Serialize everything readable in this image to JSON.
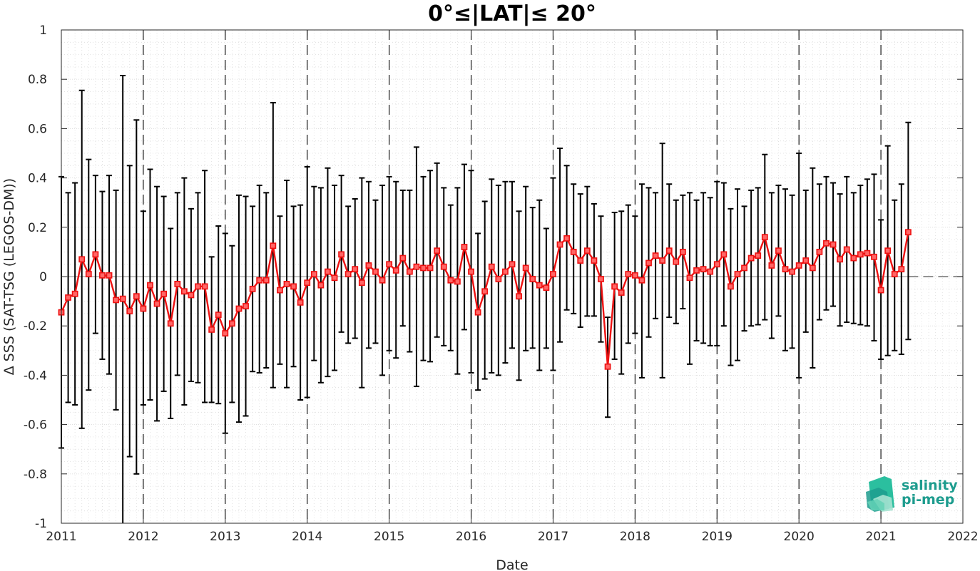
{
  "chart_data": {
    "type": "line",
    "title": "0°≤|LAT|≤ 20°",
    "xlabel": "Date",
    "ylabel": "Δ SSS (SAT-TSG (LEGOS-DM))",
    "xlim": [
      "2011-01",
      "2022-01"
    ],
    "ylim": [
      -1,
      1
    ],
    "x_ticks": [
      "2011",
      "2012",
      "2013",
      "2014",
      "2015",
      "2016",
      "2017",
      "2018",
      "2019",
      "2020",
      "2021",
      "2022"
    ],
    "y_ticks": [
      -1,
      -0.8,
      -0.6,
      -0.4,
      -0.2,
      0,
      0.2,
      0.4,
      0.6,
      0.8,
      1
    ],
    "y_tick_labels": [
      "-1",
      "-0.8",
      "-0.6",
      "-0.4",
      "-0.2",
      "0",
      "0.2",
      "0.4",
      "0.6",
      "0.8",
      "1"
    ],
    "grid": true,
    "minor_grid": true,
    "year_divider_lines": "dashed",
    "zero_line": "dashed",
    "series": [
      {
        "color": "#ee1111",
        "errorbar_color": "#000000",
        "marker": "square",
        "points": [
          {
            "date": "2011-01",
            "y": -0.145,
            "low": -0.695,
            "high": 0.405
          },
          {
            "date": "2011-02",
            "y": -0.085,
            "low": -0.51,
            "high": 0.34
          },
          {
            "date": "2011-03",
            "y": -0.07,
            "low": -0.52,
            "high": 0.38
          },
          {
            "date": "2011-04",
            "y": 0.07,
            "low": -0.615,
            "high": 0.755
          },
          {
            "date": "2011-05",
            "y": 0.01,
            "low": -0.46,
            "high": 0.475
          },
          {
            "date": "2011-06",
            "y": 0.09,
            "low": -0.23,
            "high": 0.41
          },
          {
            "date": "2011-07",
            "y": 0.005,
            "low": -0.335,
            "high": 0.345
          },
          {
            "date": "2011-08",
            "y": 0.005,
            "low": -0.395,
            "high": 0.41
          },
          {
            "date": "2011-09",
            "y": -0.095,
            "low": -0.54,
            "high": 0.35
          },
          {
            "date": "2011-10",
            "y": -0.09,
            "low": -1.0,
            "high": 0.815
          },
          {
            "date": "2011-11",
            "y": -0.14,
            "low": -0.73,
            "high": 0.45
          },
          {
            "date": "2011-12",
            "y": -0.08,
            "low": -0.8,
            "high": 0.635
          },
          {
            "date": "2012-01",
            "y": -0.13,
            "low": -0.52,
            "high": 0.265
          },
          {
            "date": "2012-02",
            "y": -0.035,
            "low": -0.5,
            "high": 0.435
          },
          {
            "date": "2012-03",
            "y": -0.11,
            "low": -0.585,
            "high": 0.365
          },
          {
            "date": "2012-04",
            "y": -0.07,
            "low": -0.465,
            "high": 0.325
          },
          {
            "date": "2012-05",
            "y": -0.19,
            "low": -0.575,
            "high": 0.195
          },
          {
            "date": "2012-06",
            "y": -0.03,
            "low": -0.4,
            "high": 0.34
          },
          {
            "date": "2012-07",
            "y": -0.06,
            "low": -0.52,
            "high": 0.4
          },
          {
            "date": "2012-08",
            "y": -0.075,
            "low": -0.425,
            "high": 0.275
          },
          {
            "date": "2012-09",
            "y": -0.04,
            "low": -0.43,
            "high": 0.34
          },
          {
            "date": "2012-10",
            "y": -0.04,
            "low": -0.51,
            "high": 0.43
          },
          {
            "date": "2012-11",
            "y": -0.215,
            "low": -0.51,
            "high": 0.08
          },
          {
            "date": "2012-12",
            "y": -0.155,
            "low": -0.515,
            "high": 0.205
          },
          {
            "date": "2013-01",
            "y": -0.23,
            "low": -0.635,
            "high": 0.175
          },
          {
            "date": "2013-02",
            "y": -0.19,
            "low": -0.51,
            "high": 0.125
          },
          {
            "date": "2013-03",
            "y": -0.13,
            "low": -0.59,
            "high": 0.33
          },
          {
            "date": "2013-04",
            "y": -0.12,
            "low": -0.565,
            "high": 0.325
          },
          {
            "date": "2013-05",
            "y": -0.05,
            "low": -0.385,
            "high": 0.285
          },
          {
            "date": "2013-06",
            "y": -0.015,
            "low": -0.39,
            "high": 0.37
          },
          {
            "date": "2013-07",
            "y": -0.015,
            "low": -0.37,
            "high": 0.34
          },
          {
            "date": "2013-08",
            "y": 0.125,
            "low": -0.45,
            "high": 0.705
          },
          {
            "date": "2013-09",
            "y": -0.055,
            "low": -0.355,
            "high": 0.245
          },
          {
            "date": "2013-10",
            "y": -0.03,
            "low": -0.45,
            "high": 0.39
          },
          {
            "date": "2013-11",
            "y": -0.04,
            "low": -0.365,
            "high": 0.285
          },
          {
            "date": "2013-12",
            "y": -0.105,
            "low": -0.5,
            "high": 0.29
          },
          {
            "date": "2014-01",
            "y": -0.025,
            "low": -0.49,
            "high": 0.445
          },
          {
            "date": "2014-02",
            "y": 0.01,
            "low": -0.34,
            "high": 0.365
          },
          {
            "date": "2014-03",
            "y": -0.035,
            "low": -0.43,
            "high": 0.36
          },
          {
            "date": "2014-04",
            "y": 0.02,
            "low": -0.405,
            "high": 0.44
          },
          {
            "date": "2014-05",
            "y": -0.005,
            "low": -0.38,
            "high": 0.37
          },
          {
            "date": "2014-06",
            "y": 0.09,
            "low": -0.225,
            "high": 0.41
          },
          {
            "date": "2014-07",
            "y": 0.01,
            "low": -0.27,
            "high": 0.285
          },
          {
            "date": "2014-08",
            "y": 0.03,
            "low": -0.25,
            "high": 0.315
          },
          {
            "date": "2014-09",
            "y": -0.025,
            "low": -0.45,
            "high": 0.4
          },
          {
            "date": "2014-10",
            "y": 0.045,
            "low": -0.29,
            "high": 0.385
          },
          {
            "date": "2014-11",
            "y": 0.02,
            "low": -0.27,
            "high": 0.31
          },
          {
            "date": "2014-12",
            "y": -0.015,
            "low": -0.4,
            "high": 0.37
          },
          {
            "date": "2015-01",
            "y": 0.05,
            "low": -0.3,
            "high": 0.405
          },
          {
            "date": "2015-02",
            "y": 0.025,
            "low": -0.33,
            "high": 0.385
          },
          {
            "date": "2015-03",
            "y": 0.075,
            "low": -0.2,
            "high": 0.35
          },
          {
            "date": "2015-04",
            "y": 0.02,
            "low": -0.305,
            "high": 0.35
          },
          {
            "date": "2015-05",
            "y": 0.04,
            "low": -0.445,
            "high": 0.525
          },
          {
            "date": "2015-06",
            "y": 0.035,
            "low": -0.34,
            "high": 0.405
          },
          {
            "date": "2015-07",
            "y": 0.035,
            "low": -0.345,
            "high": 0.43
          },
          {
            "date": "2015-08",
            "y": 0.105,
            "low": -0.245,
            "high": 0.46
          },
          {
            "date": "2015-09",
            "y": 0.04,
            "low": -0.28,
            "high": 0.36
          },
          {
            "date": "2015-10",
            "y": -0.015,
            "low": -0.3,
            "high": 0.29
          },
          {
            "date": "2015-11",
            "y": -0.02,
            "low": -0.395,
            "high": 0.36
          },
          {
            "date": "2015-12",
            "y": 0.12,
            "low": -0.215,
            "high": 0.455
          },
          {
            "date": "2016-01",
            "y": 0.02,
            "low": -0.39,
            "high": 0.43
          },
          {
            "date": "2016-02",
            "y": -0.145,
            "low": -0.46,
            "high": 0.175
          },
          {
            "date": "2016-03",
            "y": -0.06,
            "low": -0.415,
            "high": 0.305
          },
          {
            "date": "2016-04",
            "y": 0.04,
            "low": -0.39,
            "high": 0.395
          },
          {
            "date": "2016-05",
            "y": -0.01,
            "low": -0.4,
            "high": 0.37
          },
          {
            "date": "2016-06",
            "y": 0.02,
            "low": -0.35,
            "high": 0.385
          },
          {
            "date": "2016-07",
            "y": 0.05,
            "low": -0.29,
            "high": 0.385
          },
          {
            "date": "2016-08",
            "y": -0.08,
            "low": -0.42,
            "high": 0.265
          },
          {
            "date": "2016-09",
            "y": 0.035,
            "low": -0.3,
            "high": 0.365
          },
          {
            "date": "2016-10",
            "y": -0.01,
            "low": -0.29,
            "high": 0.28
          },
          {
            "date": "2016-11",
            "y": -0.035,
            "low": -0.38,
            "high": 0.31
          },
          {
            "date": "2016-12",
            "y": -0.045,
            "low": -0.29,
            "high": 0.195
          },
          {
            "date": "2017-01",
            "y": 0.01,
            "low": -0.38,
            "high": 0.4
          },
          {
            "date": "2017-02",
            "y": 0.13,
            "low": -0.265,
            "high": 0.52
          },
          {
            "date": "2017-03",
            "y": 0.155,
            "low": -0.135,
            "high": 0.45
          },
          {
            "date": "2017-04",
            "y": 0.1,
            "low": -0.15,
            "high": 0.375
          },
          {
            "date": "2017-05",
            "y": 0.065,
            "low": -0.205,
            "high": 0.335
          },
          {
            "date": "2017-06",
            "y": 0.105,
            "low": -0.16,
            "high": 0.365
          },
          {
            "date": "2017-07",
            "y": 0.065,
            "low": -0.16,
            "high": 0.295
          },
          {
            "date": "2017-08",
            "y": -0.01,
            "low": -0.265,
            "high": 0.245
          },
          {
            "date": "2017-09",
            "y": -0.365,
            "low": -0.57,
            "high": -0.165
          },
          {
            "date": "2017-10",
            "y": -0.04,
            "low": -0.335,
            "high": 0.26
          },
          {
            "date": "2017-11",
            "y": -0.065,
            "low": -0.395,
            "high": 0.265
          },
          {
            "date": "2017-12",
            "y": 0.01,
            "low": -0.27,
            "high": 0.29
          },
          {
            "date": "2018-01",
            "y": 0.005,
            "low": -0.23,
            "high": 0.245
          },
          {
            "date": "2018-02",
            "y": -0.015,
            "low": -0.41,
            "high": 0.375
          },
          {
            "date": "2018-03",
            "y": 0.055,
            "low": -0.245,
            "high": 0.36
          },
          {
            "date": "2018-04",
            "y": 0.085,
            "low": -0.17,
            "high": 0.34
          },
          {
            "date": "2018-05",
            "y": 0.065,
            "low": -0.41,
            "high": 0.54
          },
          {
            "date": "2018-06",
            "y": 0.105,
            "low": -0.165,
            "high": 0.375
          },
          {
            "date": "2018-07",
            "y": 0.06,
            "low": -0.19,
            "high": 0.31
          },
          {
            "date": "2018-08",
            "y": 0.1,
            "low": -0.13,
            "high": 0.33
          },
          {
            "date": "2018-09",
            "y": -0.005,
            "low": -0.355,
            "high": 0.34
          },
          {
            "date": "2018-10",
            "y": 0.025,
            "low": -0.26,
            "high": 0.31
          },
          {
            "date": "2018-11",
            "y": 0.03,
            "low": -0.27,
            "high": 0.34
          },
          {
            "date": "2018-12",
            "y": 0.02,
            "low": -0.28,
            "high": 0.32
          },
          {
            "date": "2019-01",
            "y": 0.05,
            "low": -0.28,
            "high": 0.385
          },
          {
            "date": "2019-02",
            "y": 0.09,
            "low": -0.2,
            "high": 0.38
          },
          {
            "date": "2019-03",
            "y": -0.04,
            "low": -0.36,
            "high": 0.275
          },
          {
            "date": "2019-04",
            "y": 0.01,
            "low": -0.34,
            "high": 0.355
          },
          {
            "date": "2019-05",
            "y": 0.035,
            "low": -0.22,
            "high": 0.285
          },
          {
            "date": "2019-06",
            "y": 0.075,
            "low": -0.2,
            "high": 0.35
          },
          {
            "date": "2019-07",
            "y": 0.085,
            "low": -0.195,
            "high": 0.36
          },
          {
            "date": "2019-08",
            "y": 0.16,
            "low": -0.175,
            "high": 0.495
          },
          {
            "date": "2019-09",
            "y": 0.045,
            "low": -0.25,
            "high": 0.34
          },
          {
            "date": "2019-10",
            "y": 0.105,
            "low": -0.16,
            "high": 0.37
          },
          {
            "date": "2019-11",
            "y": 0.03,
            "low": -0.3,
            "high": 0.355
          },
          {
            "date": "2019-12",
            "y": 0.02,
            "low": -0.29,
            "high": 0.33
          },
          {
            "date": "2020-01",
            "y": 0.045,
            "low": -0.41,
            "high": 0.5
          },
          {
            "date": "2020-02",
            "y": 0.065,
            "low": -0.225,
            "high": 0.35
          },
          {
            "date": "2020-03",
            "y": 0.035,
            "low": -0.37,
            "high": 0.44
          },
          {
            "date": "2020-04",
            "y": 0.1,
            "low": -0.175,
            "high": 0.375
          },
          {
            "date": "2020-05",
            "y": 0.135,
            "low": -0.135,
            "high": 0.405
          },
          {
            "date": "2020-06",
            "y": 0.13,
            "low": -0.12,
            "high": 0.38
          },
          {
            "date": "2020-07",
            "y": 0.07,
            "low": -0.2,
            "high": 0.335
          },
          {
            "date": "2020-08",
            "y": 0.11,
            "low": -0.185,
            "high": 0.405
          },
          {
            "date": "2020-09",
            "y": 0.075,
            "low": -0.19,
            "high": 0.34
          },
          {
            "date": "2020-10",
            "y": 0.09,
            "low": -0.195,
            "high": 0.37
          },
          {
            "date": "2020-11",
            "y": 0.095,
            "low": -0.2,
            "high": 0.395
          },
          {
            "date": "2020-12",
            "y": 0.08,
            "low": -0.26,
            "high": 0.415
          },
          {
            "date": "2021-01",
            "y": -0.055,
            "low": -0.335,
            "high": 0.23
          },
          {
            "date": "2021-02",
            "y": 0.105,
            "low": -0.32,
            "high": 0.53
          },
          {
            "date": "2021-03",
            "y": 0.01,
            "low": -0.3,
            "high": 0.31
          },
          {
            "date": "2021-04",
            "y": 0.03,
            "low": -0.315,
            "high": 0.375
          },
          {
            "date": "2021-05",
            "y": 0.18,
            "low": -0.255,
            "high": 0.625
          }
        ]
      }
    ]
  },
  "logo": {
    "line1": "salinity",
    "line2": "pi-mep",
    "color": "#1d9c8e",
    "icon": "salinity-waves-icon"
  },
  "colors": {
    "series_line": "#ee1111",
    "errorbar": "#000000",
    "grid": "#dcdcdc",
    "axis": "#262626"
  }
}
